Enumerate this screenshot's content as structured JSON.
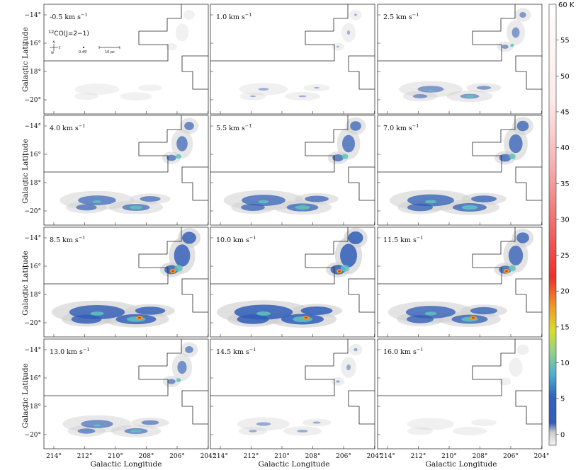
{
  "figure": {
    "line_label": "12CO(J=2−1)",
    "line_label_parts": {
      "iso": "12",
      "mol": "CO(J=2−1)"
    },
    "velocity_unit": "km s",
    "velocity_unit_sup": "−1",
    "x_axis_label": "Galactic Longitude",
    "y_axis_label": "Galactic Latitude",
    "x_ticks": [
      "214°",
      "212°",
      "210°",
      "208°",
      "206°",
      "204°"
    ],
    "y_ticks": [
      "−14°",
      "−16°",
      "−18°",
      "−20°"
    ],
    "beam_label": "0.49′",
    "scale_label": "10 pc",
    "compass": {
      "n": "N",
      "e": "E",
      "w": "W"
    },
    "panels": [
      {
        "velocity": "-0.5",
        "intensity": 0.1
      },
      {
        "velocity": "1.0",
        "intensity": 0.18
      },
      {
        "velocity": "2.5",
        "intensity": 0.45
      },
      {
        "velocity": "4.0",
        "intensity": 0.65
      },
      {
        "velocity": "5.5",
        "intensity": 0.75
      },
      {
        "velocity": "7.0",
        "intensity": 0.8
      },
      {
        "velocity": "8.5",
        "intensity": 0.95
      },
      {
        "velocity": "10.0",
        "intensity": 1.0
      },
      {
        "velocity": "11.5",
        "intensity": 0.85
      },
      {
        "velocity": "13.0",
        "intensity": 0.55
      },
      {
        "velocity": "14.5",
        "intensity": 0.25
      },
      {
        "velocity": "16.0",
        "intensity": 0.15
      }
    ]
  },
  "colorbar": {
    "unit": "K",
    "top_label": "60 K",
    "ticks": [
      "55",
      "50",
      "45",
      "40",
      "35",
      "30",
      "25",
      "20",
      "15",
      "10",
      "5",
      "0"
    ],
    "tick_values": [
      55,
      50,
      45,
      40,
      35,
      30,
      25,
      20,
      15,
      10,
      5,
      0
    ],
    "range": [
      -1.5,
      60
    ],
    "colors": [
      "#f2f2f2",
      "#c9c9c9",
      "#3a5fb0",
      "#2b55b7",
      "#3fa6d2",
      "#7fd0b0",
      "#b8db4c",
      "#e8e021",
      "#f29b22",
      "#ee3a2a",
      "#f08a8a",
      "#ffffff"
    ]
  }
}
